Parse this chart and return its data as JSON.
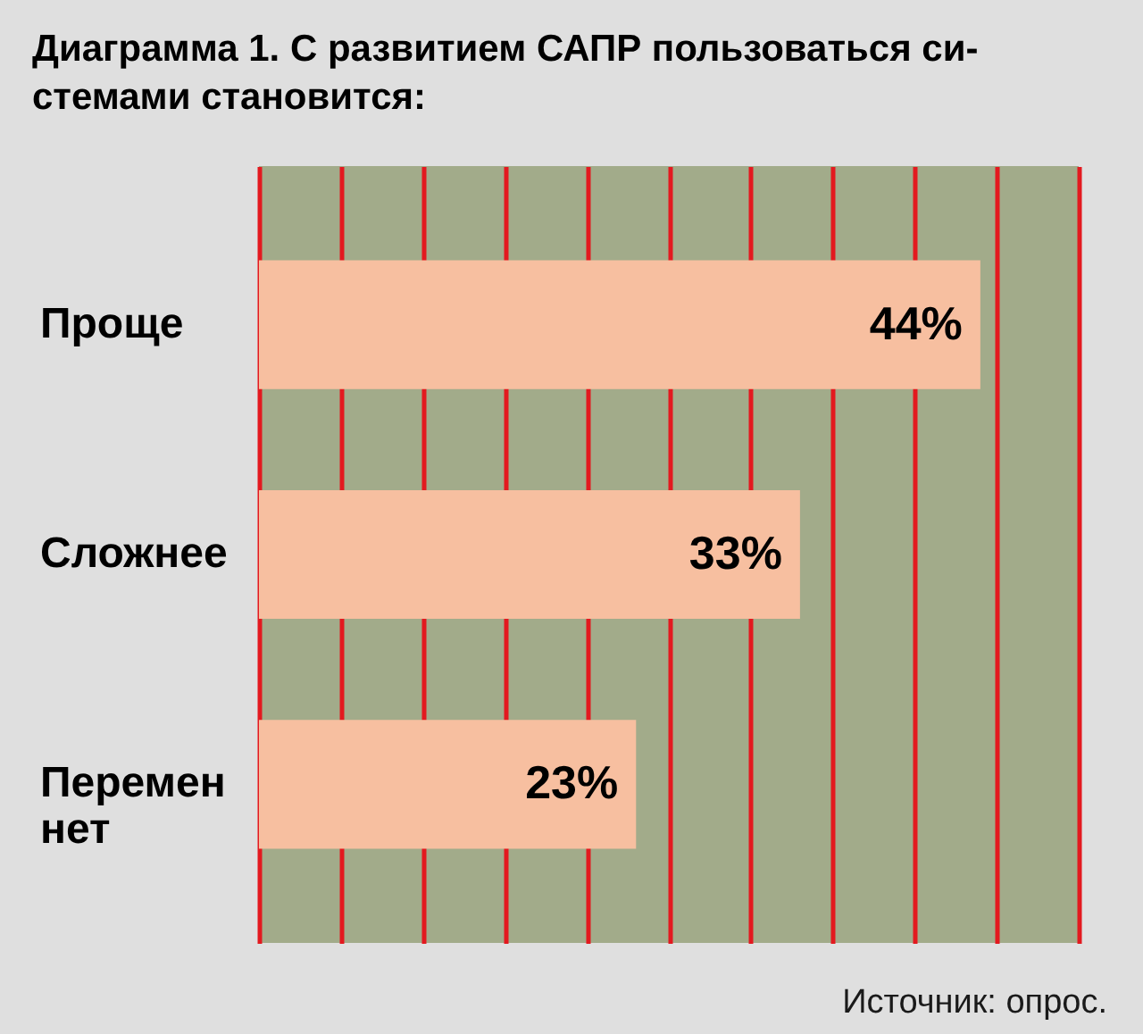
{
  "chart_data": {
    "type": "bar",
    "orientation": "horizontal",
    "title": "Диаграмма 1. С развитием САПР пользоваться си-\nстемами становится:",
    "categories": [
      "Проще",
      "Сложнее",
      "Перемен нет"
    ],
    "values": [
      44,
      33,
      23
    ],
    "color": "#f7bfa0",
    "value_labels": [
      "44%",
      "33%",
      "23%"
    ],
    "xlim": [
      0,
      50
    ],
    "xticks": [
      {
        "value": 0,
        "label": null
      },
      {
        "value": 5,
        "label": null
      },
      {
        "value": 10,
        "label": null
      },
      {
        "value": 15,
        "label": null
      },
      {
        "value": 20,
        "label": null
      },
      {
        "value": 25,
        "label": null
      },
      {
        "value": 30,
        "label": null
      },
      {
        "value": 35,
        "label": null
      },
      {
        "value": 40,
        "label": null
      },
      {
        "value": 45,
        "label": null
      },
      {
        "value": 50,
        "label": null
      }
    ],
    "grid": "x",
    "tick_labels": "y",
    "annotations": [
      "Источник: опрос."
    ]
  }
}
